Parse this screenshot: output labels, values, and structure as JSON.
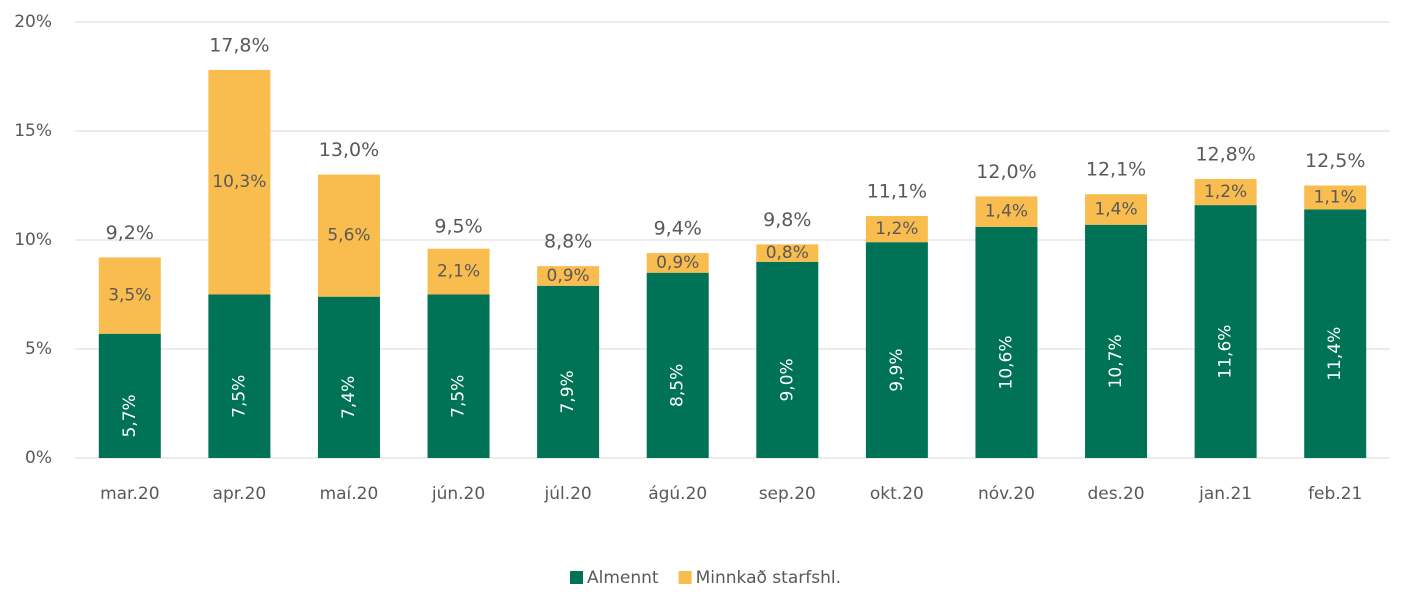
{
  "chart_data": {
    "type": "stacked_bar",
    "categories": [
      "mar.20",
      "apr.20",
      "maí.20",
      "jún.20",
      "júl.20",
      "ágú.20",
      "sep.20",
      "okt.20",
      "nóv.20",
      "des.20",
      "jan.21",
      "feb.21"
    ],
    "series": [
      {
        "name": "Almennt",
        "color": "#007256",
        "values": [
          5.7,
          7.5,
          7.4,
          7.5,
          7.9,
          8.5,
          9.0,
          9.9,
          10.6,
          10.7,
          11.6,
          11.4
        ],
        "value_labels": [
          "5,7%",
          "7,5%",
          "7,4%",
          "7,5%",
          "7,9%",
          "8,5%",
          "9,0%",
          "9,9%",
          "10,6%",
          "10,7%",
          "11,6%",
          "11,4%"
        ]
      },
      {
        "name": "Minnkað starfshl.",
        "color": "#f9bc4f",
        "values": [
          3.5,
          10.3,
          5.6,
          2.1,
          0.9,
          0.9,
          0.8,
          1.2,
          1.4,
          1.4,
          1.2,
          1.1
        ],
        "value_labels": [
          "3,5%",
          "10,3%",
          "5,6%",
          "2,1%",
          "0,9%",
          "0,9%",
          "0,8%",
          "1,2%",
          "1,4%",
          "1,4%",
          "1,2%",
          "1,1%"
        ]
      }
    ],
    "totals": [
      9.2,
      17.8,
      13.0,
      9.5,
      8.8,
      9.4,
      9.8,
      11.1,
      12.0,
      12.1,
      12.8,
      12.5
    ],
    "total_labels": [
      "9,2%",
      "17,8%",
      "13,0%",
      "9,5%",
      "8,8%",
      "9,4%",
      "9,8%",
      "11,1%",
      "12,0%",
      "12,1%",
      "12,8%",
      "12,5%"
    ],
    "ylim": [
      0,
      20
    ],
    "yticks": [
      {
        "value": 0,
        "label": "0%"
      },
      {
        "value": 5,
        "label": "5%"
      },
      {
        "value": 10,
        "label": "10%"
      },
      {
        "value": 15,
        "label": "15%"
      },
      {
        "value": 20,
        "label": "20%"
      }
    ],
    "grid": true,
    "legend": "bottom"
  }
}
